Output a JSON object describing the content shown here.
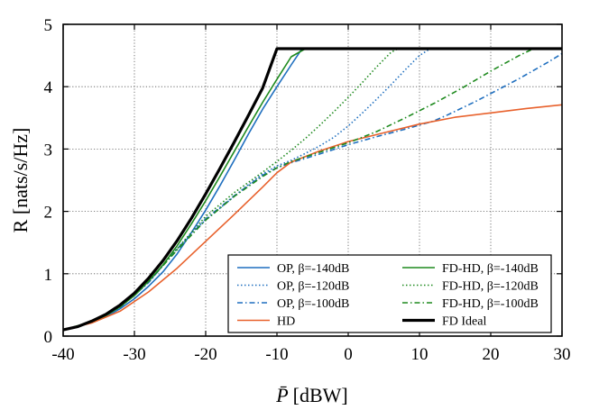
{
  "chart_data": {
    "type": "line",
    "xlabel_var": "P̄",
    "xlabel_unit": "[dBW]",
    "ylabel": "R [nats/s/Hz]",
    "xlim": [
      -40,
      30
    ],
    "ylim": [
      0,
      5
    ],
    "xticks": [
      -40,
      -30,
      -20,
      -10,
      0,
      10,
      20,
      30
    ],
    "yticks": [
      0,
      1,
      2,
      3,
      4,
      5
    ],
    "grid": true,
    "legend_position": "bottom-right",
    "series": [
      {
        "name": "OP, β=-140dB",
        "color": "#1f6fbf",
        "dash": "solid",
        "width": 1.6,
        "x": [
          -40,
          -38,
          -36,
          -34,
          -32,
          -30,
          -28,
          -26,
          -24,
          -22,
          -20,
          -18,
          -16,
          -14,
          -12,
          -10,
          -8,
          -7,
          -6.5
        ],
        "y": [
          0.1,
          0.15,
          0.22,
          0.31,
          0.44,
          0.6,
          0.8,
          1.03,
          1.32,
          1.66,
          2.02,
          2.41,
          2.82,
          3.24,
          3.64,
          4.0,
          4.35,
          4.52,
          4.61
        ]
      },
      {
        "name": "OP, β=-120dB",
        "color": "#1f6fbf",
        "dash": "1.5 2.5",
        "width": 1.6,
        "x": [
          -40,
          -36,
          -32,
          -28,
          -24,
          -22,
          -20,
          -18,
          -16,
          -14,
          -12,
          -10,
          -8,
          -6,
          -4,
          -2,
          0,
          2,
          4,
          6,
          8,
          10,
          11.5
        ],
        "y": [
          0.1,
          0.22,
          0.46,
          0.86,
          1.4,
          1.66,
          1.86,
          2.05,
          2.24,
          2.43,
          2.6,
          2.73,
          2.82,
          2.93,
          3.05,
          3.19,
          3.37,
          3.58,
          3.8,
          4.03,
          4.27,
          4.5,
          4.61
        ]
      },
      {
        "name": "OP, β=-100dB",
        "color": "#1f6fbf",
        "dash": "6 3 1.5 3",
        "width": 1.6,
        "x": [
          -40,
          -36,
          -32,
          -28,
          -24,
          -20,
          -16,
          -12,
          -10,
          -8,
          -4,
          0,
          4,
          8,
          12,
          14,
          16,
          18,
          20,
          22,
          24,
          26,
          28,
          30
        ],
        "y": [
          0.1,
          0.22,
          0.46,
          0.86,
          1.4,
          1.88,
          2.25,
          2.58,
          2.7,
          2.78,
          2.92,
          3.07,
          3.2,
          3.32,
          3.45,
          3.55,
          3.66,
          3.77,
          3.89,
          4.01,
          4.13,
          4.26,
          4.39,
          4.53
        ]
      },
      {
        "name": "HD",
        "color": "#e8612c",
        "dash": "solid",
        "width": 1.6,
        "x": [
          -40,
          -36,
          -32,
          -28,
          -24,
          -20,
          -16,
          -12,
          -10,
          -8,
          -4,
          0,
          5,
          10,
          15,
          20,
          25,
          30
        ],
        "y": [
          0.1,
          0.21,
          0.4,
          0.71,
          1.09,
          1.52,
          1.95,
          2.39,
          2.62,
          2.79,
          2.97,
          3.12,
          3.26,
          3.4,
          3.51,
          3.58,
          3.65,
          3.71
        ]
      },
      {
        "name": "FD-HD, β=-140dB",
        "color": "#1e8a1e",
        "dash": "solid",
        "width": 1.6,
        "x": [
          -40,
          -38,
          -36,
          -34,
          -32,
          -30,
          -28,
          -26,
          -24,
          -22,
          -20,
          -18,
          -16,
          -14,
          -12,
          -10,
          -8,
          -6
        ],
        "y": [
          0.1,
          0.15,
          0.23,
          0.33,
          0.47,
          0.65,
          0.88,
          1.14,
          1.45,
          1.8,
          2.17,
          2.56,
          2.96,
          3.36,
          3.75,
          4.12,
          4.48,
          4.61
        ]
      },
      {
        "name": "FD-HD, β=-120dB",
        "color": "#1e8a1e",
        "dash": "1.5 2.5",
        "width": 1.6,
        "x": [
          -40,
          -36,
          -32,
          -28,
          -24,
          -20,
          -16,
          -12,
          -10,
          -8,
          -6,
          -4,
          -2,
          0,
          2,
          4,
          6,
          7
        ],
        "y": [
          0.1,
          0.23,
          0.47,
          0.88,
          1.4,
          1.92,
          2.3,
          2.63,
          2.8,
          2.98,
          3.17,
          3.38,
          3.6,
          3.83,
          4.07,
          4.32,
          4.55,
          4.61
        ]
      },
      {
        "name": "FD-HD, β=-100dB",
        "color": "#1e8a1e",
        "dash": "6 3 1.5 3",
        "width": 1.6,
        "x": [
          -40,
          -36,
          -32,
          -28,
          -24,
          -20,
          -16,
          -12,
          -10,
          -8,
          -4,
          0,
          4,
          8,
          12,
          16,
          20,
          24,
          26,
          27
        ],
        "y": [
          0.1,
          0.23,
          0.47,
          0.88,
          1.38,
          1.86,
          2.24,
          2.56,
          2.7,
          2.8,
          2.95,
          3.1,
          3.28,
          3.5,
          3.73,
          3.98,
          4.25,
          4.5,
          4.61,
          4.61
        ]
      },
      {
        "name": "FD Ideal",
        "color": "#000000",
        "dash": "solid",
        "width": 3.2,
        "x": [
          -40,
          -38,
          -36,
          -34,
          -32,
          -30,
          -28,
          -26,
          -24,
          -22,
          -20,
          -18,
          -16,
          -14,
          -12,
          -10,
          30
        ],
        "y": [
          0.1,
          0.15,
          0.24,
          0.35,
          0.5,
          0.69,
          0.93,
          1.21,
          1.53,
          1.89,
          2.28,
          2.69,
          3.11,
          3.54,
          3.98,
          4.61,
          4.61
        ]
      }
    ]
  }
}
